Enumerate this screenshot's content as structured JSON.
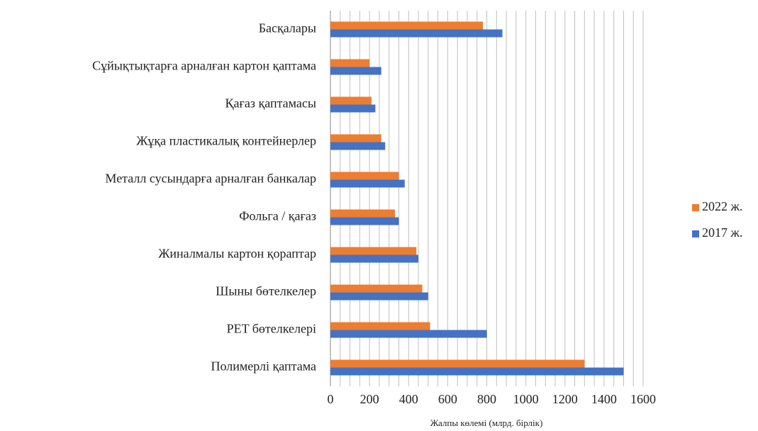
{
  "chart_data": {
    "type": "hbar",
    "categories": [
      "Басқалары",
      "Сұйықтықтарға арналған картон қаптама",
      "Қағаз қаптамасы",
      "Жұқа пластикалық контейнерлер",
      "Металл сусындарға арналған банкалар",
      "Фольга / қағаз",
      "Жиналмалы картон қораптар",
      "Шыны бөтелкелер",
      "PET бөтелкелері",
      "Полимерлі қаптама"
    ],
    "series": [
      {
        "name": "2022 ж.",
        "color": "#ed7d31",
        "values": [
          780,
          200,
          210,
          260,
          350,
          330,
          440,
          470,
          510,
          1300
        ]
      },
      {
        "name": "2017 ж.",
        "color": "#4472c4",
        "values": [
          880,
          260,
          230,
          280,
          380,
          350,
          450,
          500,
          800,
          1500
        ]
      }
    ],
    "xlabel": "Жалпы көлемі (млрд. бірлік)",
    "xlim": [
      0,
      1600
    ],
    "xticks": [
      0,
      200,
      400,
      600,
      800,
      1000,
      1200,
      1400,
      1600
    ],
    "xminor_ticks": [
      50,
      100,
      150,
      250,
      300,
      350,
      450,
      500,
      550,
      650,
      700,
      750,
      850,
      900,
      950,
      1050,
      1100,
      1150,
      1250,
      1300,
      1350,
      1450,
      1500,
      1550
    ],
    "grid": true,
    "legend": "right"
  }
}
